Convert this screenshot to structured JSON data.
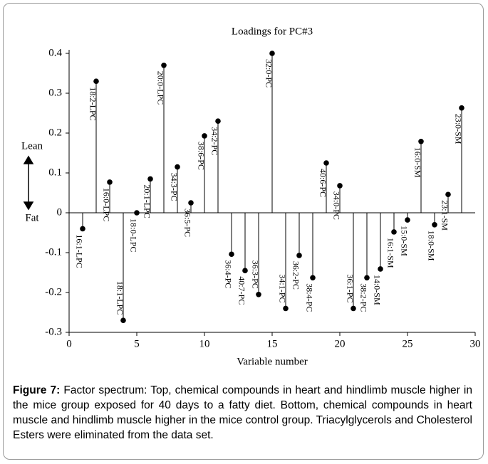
{
  "chart_data": {
    "type": "stem",
    "title": "Loadings for PC#3",
    "x_label": "Variable number",
    "annotations": {
      "top": "Lean",
      "bottom": "Fat"
    },
    "x": [
      1,
      2,
      3,
      4,
      5,
      6,
      7,
      8,
      9,
      10,
      11,
      12,
      13,
      14,
      15,
      16,
      17,
      18,
      19,
      20,
      21,
      22,
      23,
      24,
      25,
      26,
      27,
      28,
      29
    ],
    "labels": [
      "16:1-LPC",
      "18:2-LPC",
      "16:0-LPC",
      "18:1-LPC",
      "18:0-LPC",
      "20:1-LPC",
      "20:0-LPC",
      "34:3-PC",
      "36:5-PC",
      "38:6-PC",
      "34:2-PC",
      "36:4-PC",
      "40:7-PC",
      "36:3-PC",
      "32:0-PC",
      "34:1-PC",
      "36:2-PC",
      "38:4-PC",
      "40:6-PC",
      "34:0-PC",
      "36:1-PC",
      "38:2-PC",
      "14:0-SM",
      "16:1-SM",
      "15:0-SM",
      "16:0-SM",
      "18:0-SM",
      "23:1-SM",
      "23:0-SM"
    ],
    "values": [
      -0.04,
      0.33,
      0.077,
      -0.27,
      0,
      0.085,
      0.37,
      0.115,
      0.025,
      0.193,
      0.23,
      -0.104,
      -0.145,
      -0.205,
      0.4,
      -0.24,
      -0.107,
      -0.163,
      0.125,
      0.068,
      -0.24,
      -0.163,
      -0.141,
      -0.048,
      -0.018,
      0.179,
      -0.03,
      0.046,
      0.263
    ],
    "color": "#000000",
    "xlim": [
      0,
      30
    ],
    "xticks": [
      0,
      5,
      10,
      15,
      20,
      25,
      30
    ],
    "ylim": [
      -0.3,
      0.4
    ],
    "yticks": [
      -0.3,
      -0.2,
      -0.1,
      0,
      0.1,
      0.2,
      0.3,
      0.4
    ]
  },
  "caption": {
    "label": "Figure 7:",
    "text": "Factor spectrum: Top, chemical compounds in heart and hindlimb muscle higher in the mice group exposed for 40 days to a fatty diet. Bottom, chemical compounds in heart muscle and hindlimb muscle higher in the mice control group. Triacylglycerols and Cholesterol Esters were eliminated from the data set."
  }
}
